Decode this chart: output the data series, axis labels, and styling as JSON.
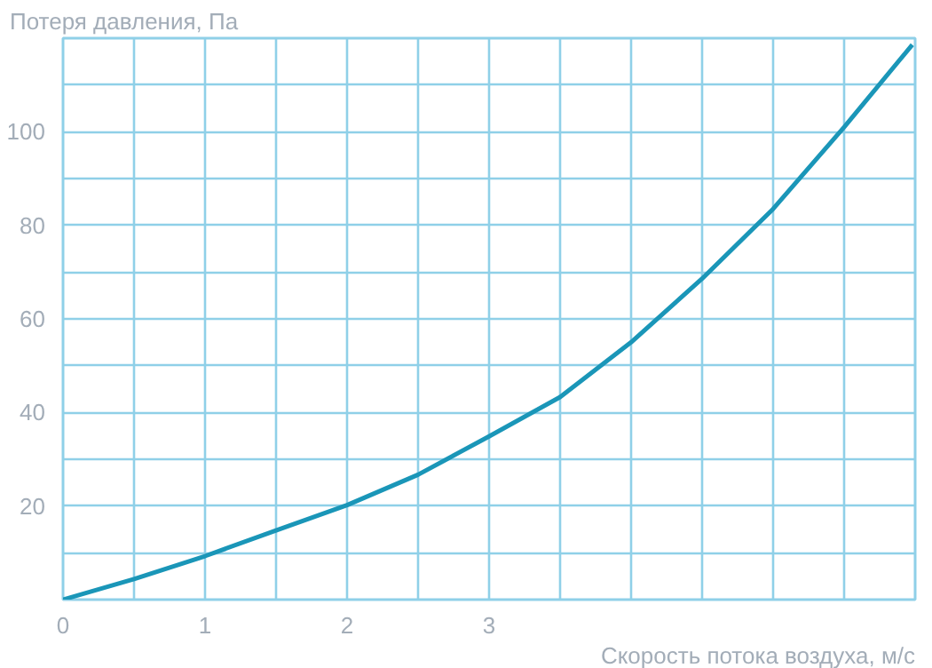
{
  "chart_data": {
    "type": "line",
    "xlabel": "Скорость потока воздуха, м/с",
    "ylabel": "Потеря давления, Па",
    "x": [
      0,
      0.5,
      1,
      1.5,
      2,
      2.5,
      3,
      3.5,
      4,
      4.5,
      5,
      5.5,
      5.98
    ],
    "series": [
      {
        "color": "#1a96b8",
        "values": [
          0,
          4.4,
          9.3,
          14.8,
          20.2,
          26.7,
          34.9,
          43.3,
          55,
          68.6,
          83.5,
          101,
          118.6
        ]
      }
    ],
    "xlim": [
      0,
      6
    ],
    "xticks": [
      0,
      {
        "value": 0.5,
        "label": null
      },
      1,
      {
        "value": 1.5,
        "label": null
      },
      2,
      {
        "value": 2.5,
        "label": null
      },
      3,
      {
        "value": 3.5,
        "label": null
      },
      {
        "value": 4,
        "label": null
      },
      {
        "value": 4.5,
        "label": null
      },
      {
        "value": 5,
        "label": null
      },
      {
        "value": 5.5,
        "label": null
      },
      {
        "value": 6,
        "label": null
      }
    ],
    "ylim": [
      0,
      120
    ],
    "yticks": [
      {
        "value": 0,
        "label": null
      },
      {
        "value": 10,
        "label": null
      },
      20,
      {
        "value": 30,
        "label": null
      },
      40,
      {
        "value": 50,
        "label": null
      },
      60,
      {
        "value": 70,
        "label": null
      },
      80,
      {
        "value": 90,
        "label": null
      },
      100,
      {
        "value": 110,
        "label": null
      },
      {
        "value": 120,
        "label": null
      }
    ],
    "grid": true,
    "marker": "none",
    "line_style": "solid"
  }
}
